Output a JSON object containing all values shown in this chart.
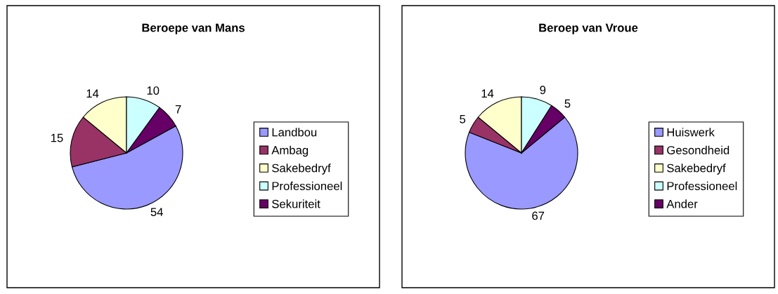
{
  "chart_data": [
    {
      "type": "pie",
      "title": "Beroepe van Mans",
      "categories": [
        "Landbou",
        "Ambag",
        "Sakebedryf",
        "Professioneel",
        "Sekuriteit"
      ],
      "values": [
        54,
        15,
        14,
        10,
        7
      ],
      "colors": [
        "#9999ff",
        "#993366",
        "#ffffcc",
        "#ccffff",
        "#660066"
      ],
      "data_labels": true,
      "legend": "right"
    },
    {
      "type": "pie",
      "title": "Beroep van Vroue",
      "categories": [
        "Huiswerk",
        "Gesondheid",
        "Sakebedryf",
        "Professioneel",
        "Ander"
      ],
      "values": [
        67,
        5,
        14,
        9,
        5
      ],
      "colors": [
        "#9999ff",
        "#993366",
        "#ffffcc",
        "#ccffff",
        "#660066"
      ],
      "data_labels": true,
      "legend": "right"
    }
  ]
}
